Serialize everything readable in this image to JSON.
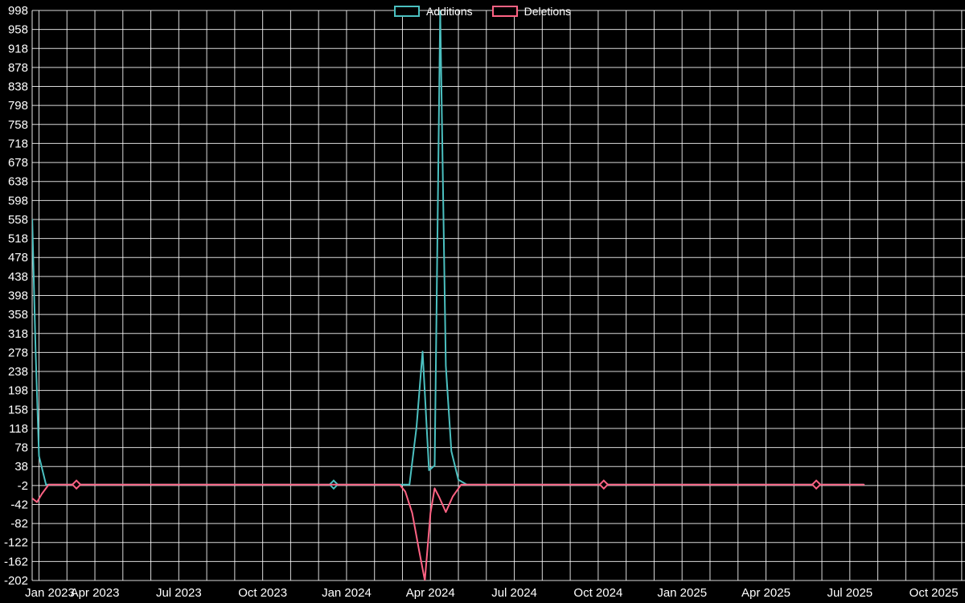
{
  "legend": {
    "items": [
      {
        "label": "Additions",
        "color": "#4bc0c0"
      },
      {
        "label": "Deletions",
        "color": "#ff6384"
      }
    ]
  },
  "chart_data": {
    "type": "line",
    "title": "",
    "xlabel": "",
    "ylabel": "",
    "background_color": "#000000",
    "grid": true,
    "grid_color": "#ffffff",
    "text_color": "#ffffff",
    "legend_position": "top",
    "x_unit": "months since Jan 2023",
    "x_ticks": [
      {
        "month": 0,
        "label": "Jan 2023"
      },
      {
        "month": 3,
        "label": "Apr 2023"
      },
      {
        "month": 6,
        "label": "Jul 2023"
      },
      {
        "month": 9,
        "label": "Oct 2023"
      },
      {
        "month": 12,
        "label": "Jan 2024"
      },
      {
        "month": 15,
        "label": "Apr 2024"
      },
      {
        "month": 18,
        "label": "Jul 2024"
      },
      {
        "month": 21,
        "label": "Oct 2024"
      },
      {
        "month": 24,
        "label": "Jan 2025"
      },
      {
        "month": 27,
        "label": "Apr 2025"
      },
      {
        "month": 30,
        "label": "Jul 2025"
      },
      {
        "month": 33,
        "label": "Oct 2025"
      }
    ],
    "x_months_total": 34,
    "y_axis": {
      "min": -202,
      "max": 998,
      "step": 40,
      "ticks": [
        998,
        958,
        918,
        878,
        838,
        798,
        758,
        718,
        678,
        638,
        598,
        558,
        518,
        478,
        438,
        398,
        358,
        318,
        278,
        238,
        198,
        158,
        118,
        78,
        38,
        -2,
        -42,
        -82,
        -122,
        -162,
        -202
      ]
    },
    "series": [
      {
        "name": "Additions",
        "color": "#4bc0c0",
        "points": [
          [
            0.76,
            558
          ],
          [
            0.88,
            280
          ],
          [
            1.0,
            60
          ],
          [
            1.25,
            0
          ],
          [
            11.54,
            0
          ],
          [
            14.25,
            0
          ],
          [
            14.5,
            120
          ],
          [
            14.72,
            280
          ],
          [
            14.95,
            30
          ],
          [
            15.15,
            40
          ],
          [
            15.35,
            998
          ],
          [
            15.55,
            250
          ],
          [
            15.75,
            70
          ],
          [
            16.0,
            10
          ],
          [
            16.3,
            0
          ],
          [
            21.2,
            0
          ],
          [
            28.8,
            0
          ],
          [
            30.5,
            0
          ]
        ],
        "markers": [
          [
            11.54,
            0
          ]
        ]
      },
      {
        "name": "Deletions",
        "color": "#ff6384",
        "points": [
          [
            0.76,
            -29
          ],
          [
            0.93,
            -37
          ],
          [
            1.1,
            -20
          ],
          [
            1.35,
            0
          ],
          [
            2.34,
            0
          ],
          [
            13.9,
            0
          ],
          [
            14.1,
            -15
          ],
          [
            14.35,
            -60
          ],
          [
            14.6,
            -140
          ],
          [
            14.8,
            -202
          ],
          [
            15.0,
            -60
          ],
          [
            15.15,
            -8
          ],
          [
            15.3,
            -25
          ],
          [
            15.55,
            -58
          ],
          [
            15.8,
            -25
          ],
          [
            16.1,
            0
          ],
          [
            21.2,
            0
          ],
          [
            28.8,
            0
          ],
          [
            30.5,
            0
          ]
        ],
        "markers": [
          [
            2.34,
            0
          ],
          [
            21.2,
            0
          ],
          [
            28.8,
            0
          ]
        ]
      }
    ]
  }
}
